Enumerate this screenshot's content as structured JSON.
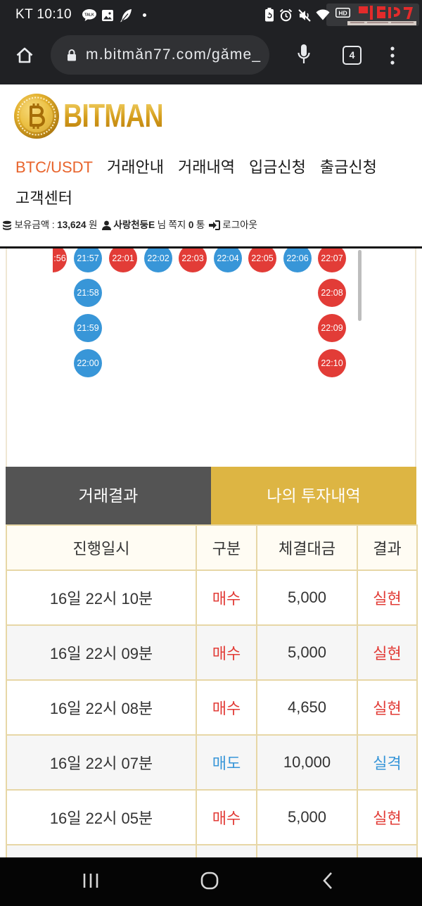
{
  "status_bar": {
    "carrier_time": "KT 10:10",
    "talk_label": "TALK",
    "hd_label": "HD",
    "left_icons": [
      "kakaotalk-icon",
      "gallery-icon",
      "feather-icon",
      "notification-dot-icon"
    ],
    "right_icons": [
      "battery-saver-icon",
      "alarm-icon",
      "mute-icon",
      "wifi-icon",
      "hd-icon"
    ]
  },
  "browser": {
    "url": "m.bitmǎn77.com/gǎme_",
    "tab_count": "4",
    "icons": [
      "home-icon",
      "lock-icon",
      "mic-icon",
      "tabs-icon",
      "menu-icon"
    ]
  },
  "site": {
    "logo_text": "BITMAN",
    "nav": [
      {
        "label": "BTC/USDT",
        "tone": "accent"
      },
      {
        "label": "거래안내"
      },
      {
        "label": "거래내역"
      },
      {
        "label": "입금신청"
      },
      {
        "label": "출금신청"
      },
      {
        "label": "고객센터"
      }
    ]
  },
  "account": {
    "balance_label": "보유금액 :",
    "balance_value": "13,624",
    "balance_unit": "원",
    "username": "사랑천둥E",
    "honorific": "님",
    "message_label": "쪽지",
    "message_count": "0",
    "message_unit": "통",
    "logout_label": "로그아웃"
  },
  "board": {
    "beads": [
      {
        "time": ":56",
        "color": "red"
      },
      {
        "time": "21:57",
        "color": "blue"
      },
      {
        "time": "21:58",
        "color": "blue"
      },
      {
        "time": "21:59",
        "color": "blue"
      },
      {
        "time": "22:00",
        "color": "blue"
      },
      {
        "time": "22:01",
        "color": "red"
      },
      {
        "time": "22:02",
        "color": "blue"
      },
      {
        "time": "22:03",
        "color": "red"
      },
      {
        "time": "22:04",
        "color": "blue"
      },
      {
        "time": "22:05",
        "color": "red"
      },
      {
        "time": "22:06",
        "color": "blue"
      },
      {
        "time": "22:07",
        "color": "red"
      },
      {
        "time": "22:08",
        "color": "red"
      },
      {
        "time": "22:09",
        "color": "red"
      },
      {
        "time": "22:10",
        "color": "red"
      }
    ]
  },
  "tabs": [
    {
      "label": "거래결과",
      "color": "tab_dark"
    },
    {
      "label": "나의 투자내역",
      "color": "tab_gold"
    }
  ],
  "table": {
    "headers": [
      "진행일시",
      "구분",
      "체결대금",
      "결과"
    ],
    "rows": [
      {
        "time": "16일 22시 10분",
        "side": "매수",
        "side_tone": "red",
        "amount": "5,000",
        "result": "실현",
        "result_tone": "red"
      },
      {
        "time": "16일 22시 09분",
        "side": "매수",
        "side_tone": "red",
        "amount": "5,000",
        "result": "실현",
        "result_tone": "red"
      },
      {
        "time": "16일 22시 08분",
        "side": "매수",
        "side_tone": "red",
        "amount": "4,650",
        "result": "실현",
        "result_tone": "red"
      },
      {
        "time": "16일 22시 07분",
        "side": "매도",
        "side_tone": "blue",
        "amount": "10,000",
        "result": "실격",
        "result_tone": "blue"
      },
      {
        "time": "16일 22시 05분",
        "side": "매수",
        "side_tone": "red",
        "amount": "5,000",
        "result": "실현",
        "result_tone": "red"
      }
    ]
  },
  "android_nav": [
    "recent-apps-icon",
    "home-button-icon",
    "back-icon"
  ],
  "colors": {
    "red": "#e23c37",
    "blue": "#3896d8",
    "accent": "#e8642c",
    "tab_dark": "#545454",
    "tab_gold": "#ddb543",
    "table_border": "#e7d7a6",
    "brand_gold": "#d49d1c"
  }
}
